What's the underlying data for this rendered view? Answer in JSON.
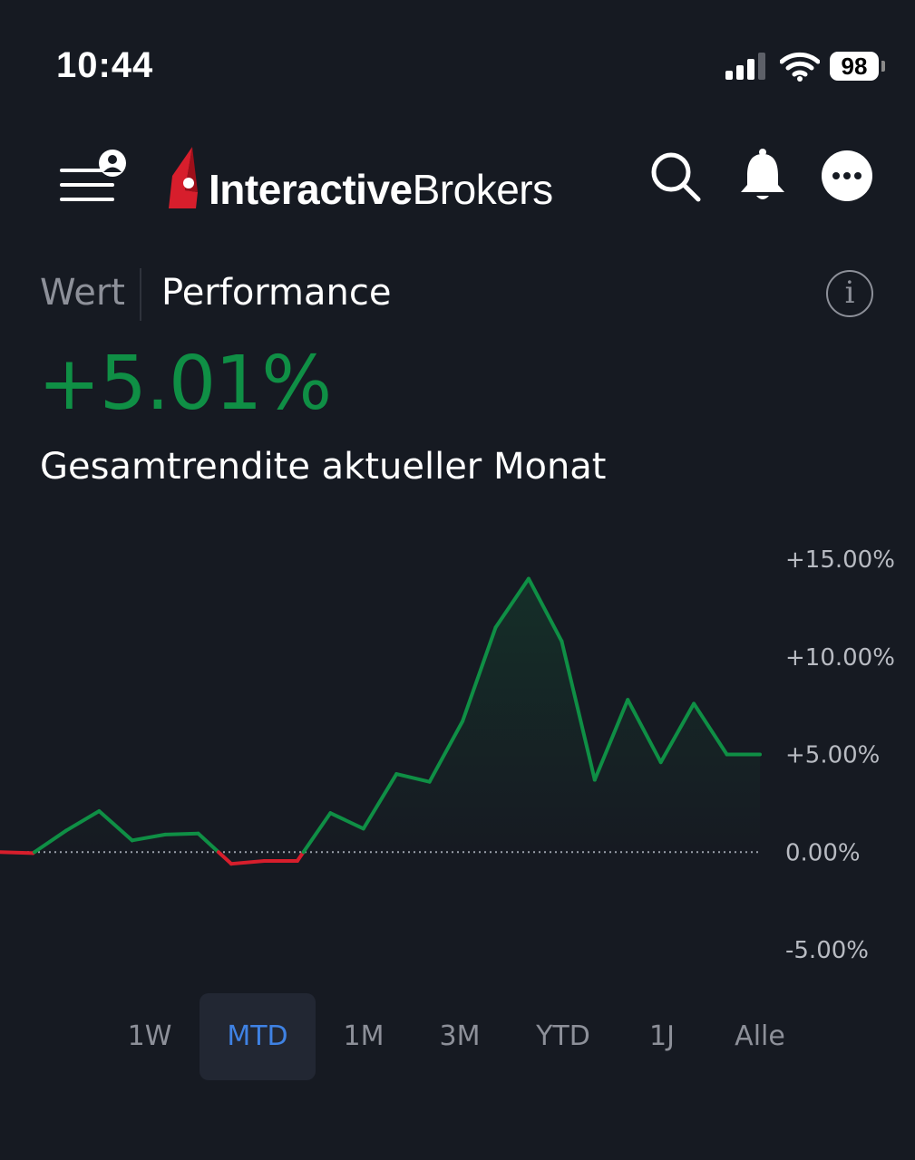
{
  "status_bar": {
    "time": "10:44",
    "battery": "98",
    "icons": [
      "signal-icon",
      "wifi-icon",
      "battery-icon"
    ]
  },
  "header": {
    "logo_bold": "Interactive",
    "logo_regular": "Brokers",
    "icons": [
      "menu-profile-icon",
      "search-icon",
      "bell-icon",
      "more-icon"
    ]
  },
  "tabs": [
    {
      "label": "Wert",
      "active": false
    },
    {
      "label": "Performance",
      "active": true
    }
  ],
  "info_icon": "i",
  "summary": {
    "value": "+5.01%",
    "label": "Gesamtrendite aktueller Monat"
  },
  "colors": {
    "positive": "#0f8f45",
    "negative": "#d71e2c",
    "active_range": "#3f82e4"
  },
  "chart_data": {
    "type": "line",
    "ylim": [
      -5,
      15
    ],
    "yticks": [
      "+15.00%",
      "+10.00%",
      "+5.00%",
      "0.00%",
      "-5.00%"
    ],
    "ytick_values": [
      15,
      10,
      5,
      0,
      -5
    ],
    "baseline": 0,
    "grid": false,
    "series": [
      {
        "values": [
          0.0,
          -0.05,
          1.1,
          2.1,
          0.6,
          0.9,
          0.95,
          -0.6,
          -0.45,
          -0.45,
          2.0,
          1.2,
          4.0,
          3.6,
          6.7,
          11.5,
          14.0,
          10.8,
          3.7,
          7.8,
          4.6,
          7.6,
          5.0,
          5.0
        ]
      }
    ]
  },
  "ranges": [
    {
      "label": "1W",
      "active": false
    },
    {
      "label": "MTD",
      "active": true
    },
    {
      "label": "1M",
      "active": false
    },
    {
      "label": "3M",
      "active": false
    },
    {
      "label": "YTD",
      "active": false
    },
    {
      "label": "1J",
      "active": false
    },
    {
      "label": "Alle",
      "active": false
    }
  ]
}
